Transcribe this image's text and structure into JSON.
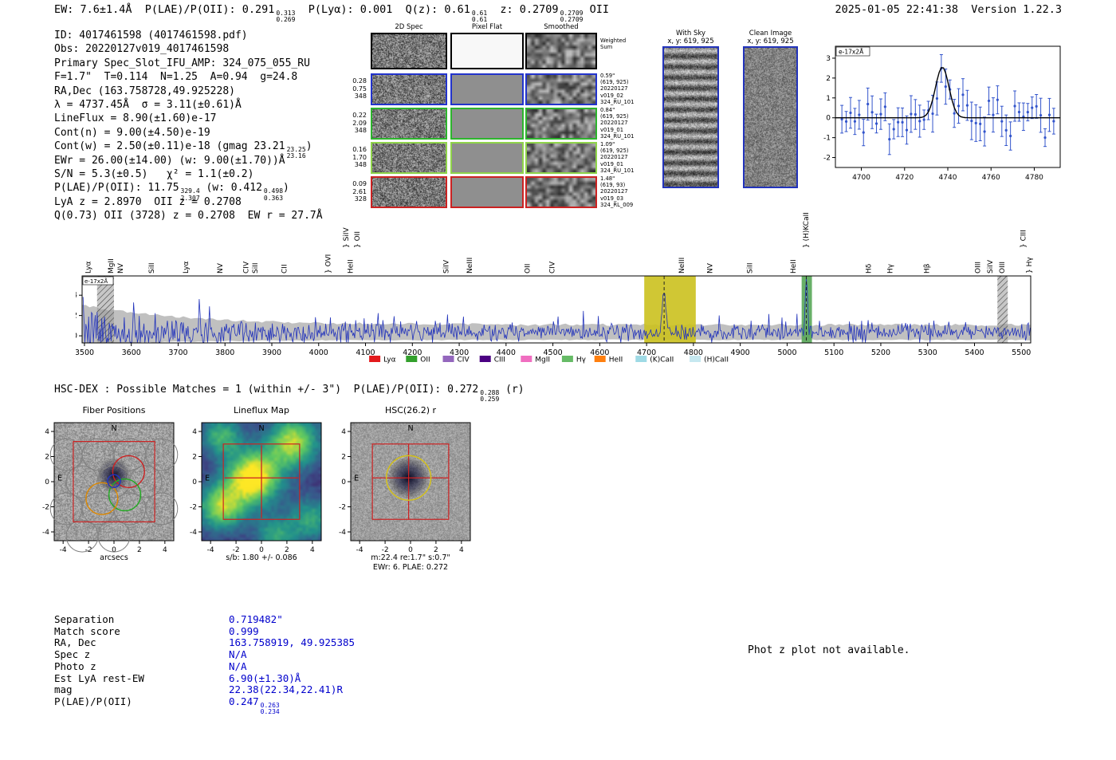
{
  "header": {
    "stats": [
      {
        "t": "EW: 7.6±1.4Å  P(LAE)/P(OII): 0.291"
      },
      {
        "f": [
          "0.313",
          "0.269"
        ]
      },
      {
        "t": "  P(Lyα): 0.001  Q(z): 0.61"
      },
      {
        "f": [
          "0.61",
          "0.61"
        ]
      },
      {
        "t": "  z: 0.2709"
      },
      {
        "f": [
          "0.2709",
          "0.2709"
        ]
      },
      {
        "t": " OII"
      }
    ],
    "datetime": "2025-01-05 22:41:38  Version 1.22.3"
  },
  "info": {
    "lines": [
      [
        {
          "t": "ID: 4017461598 (4017461598.pdf)"
        }
      ],
      [
        {
          "t": "Obs: 20220127v019_4017461598"
        }
      ],
      [
        {
          "t": "Primary Spec_Slot_IFU_AMP: 324_075_055_RU"
        }
      ],
      [
        {
          "t": "F=1.7\"  T=0.114  N=1.25  A=0.94  g=24.8"
        }
      ],
      [
        {
          "t": "RA,Dec (163.758728,49.925228)"
        }
      ],
      [
        {
          "t": "λ = 4737.45Å  σ = 3.11(±0.61)Å"
        }
      ],
      [
        {
          "t": "LineFlux = 8.90(±1.60)e-17"
        }
      ],
      [
        {
          "t": "Cont(n) = 9.00(±4.50)e-19"
        }
      ],
      [
        {
          "t": "Cont(w) = 2.50(±0.11)e-18 (gmag 23.21"
        },
        {
          "f": [
            "23.25",
            "23.16"
          ]
        },
        {
          "t": ")"
        }
      ],
      [
        {
          "t": "EWr = 26.00(±14.00) (w: 9.00(±1.70))Å"
        }
      ],
      [
        {
          "t": "S/N = 5.3(±0.5)   χ² = 1.1(±0.2)"
        }
      ],
      [
        {
          "t": "P(LAE)/P(OII): 11.75"
        },
        {
          "f": [
            "329.4",
            "2.307"
          ]
        },
        {
          "t": " (w: 0.412"
        },
        {
          "f": [
            "0.498",
            "0.363"
          ]
        },
        {
          "t": ")"
        }
      ],
      [
        {
          "t": "LyA z = 2.8970  OII z = 0.2708"
        }
      ],
      [
        {
          "t": "Q(0.73) OII (3728) z = 0.2708  EW r = 27.7Å"
        }
      ]
    ]
  },
  "cutouts": {
    "col_headers": [
      "2D Spec",
      "Pixel Flat",
      "Smoothed"
    ],
    "weighted": {
      "right_label": [
        "Weighted",
        "Sum"
      ]
    },
    "rows": [
      {
        "border": "#2233cc",
        "left": [
          "0.28",
          "0.75",
          "348"
        ],
        "right": [
          "0.59\"",
          "(619, 925)",
          "20220127",
          "v019_02",
          "324_RU_101"
        ]
      },
      {
        "border": "#2db52d",
        "left": [
          "0.22",
          "2.09",
          "348"
        ],
        "right": [
          "0.84\"",
          "(619, 925)",
          "20220127",
          "v019_01",
          "324_RU_101"
        ]
      },
      {
        "border": "#8fd44a",
        "left": [
          "0.16",
          "1.70",
          "348"
        ],
        "right": [
          "1.09\"",
          "(619, 925)",
          "20220127",
          "v019_01",
          "324_RU_101"
        ]
      },
      {
        "border": "#cc2222",
        "left": [
          "0.09",
          "2.61",
          "328"
        ],
        "right": [
          "1.48\"",
          "(619, 93)",
          "20220127",
          "v019_03",
          "324_RL_009"
        ]
      }
    ]
  },
  "sky": {
    "with_sky": {
      "title": "With Sky",
      "xy": "x, y: 619, 925"
    },
    "clean": {
      "title": "Clean Image",
      "xy": "x, y: 619, 925"
    }
  },
  "hsc_line": [
    {
      "t": "HSC-DEX : Possible Matches = 1 (within +/- 3\")  P(LAE)/P(OII): 0.272"
    },
    {
      "f": [
        "0.288",
        "0.259"
      ]
    },
    {
      "t": " (r)"
    }
  ],
  "match_table": {
    "rows": [
      {
        "label": "Separation",
        "value": [
          {
            "t": "0.719482\""
          }
        ]
      },
      {
        "label": "Match score",
        "value": [
          {
            "t": "0.999"
          }
        ]
      },
      {
        "label": "RA, Dec",
        "value": [
          {
            "t": "163.758919, 49.925385"
          }
        ]
      },
      {
        "label": "Spec z",
        "value": [
          {
            "t": "N/A"
          }
        ]
      },
      {
        "label": "Photo z",
        "value": [
          {
            "t": "N/A"
          }
        ]
      },
      {
        "label": "Est LyA rest-EW",
        "value": [
          {
            "t": "6.90(±1.30)Å"
          }
        ]
      },
      {
        "label": "mag",
        "value": [
          {
            "t": "22.38(22.34,22.41)R"
          }
        ]
      },
      {
        "label": "P(LAE)/P(OII)",
        "value": [
          {
            "t": "0.247"
          },
          {
            "f": [
              "0.263",
              "0.234"
            ]
          }
        ]
      }
    ]
  },
  "phot_note": "Phot z plot not available.",
  "chart_data": [
    {
      "id": "main_spectrum",
      "type": "line",
      "title": "",
      "xlabel": "",
      "ylabel": "e-17x2Å",
      "x_range": [
        3495,
        5520
      ],
      "y_range": [
        -0.7,
        5.9
      ],
      "x_ticks": [
        3500,
        3600,
        3700,
        3800,
        3900,
        4000,
        4100,
        4200,
        4300,
        4400,
        4500,
        4600,
        4700,
        4800,
        4900,
        5000,
        5100,
        5200,
        5300,
        5400,
        5500
      ],
      "y_ticks": [
        0,
        2,
        4
      ],
      "line_color": "#2233bb",
      "envelope_color": "#c0c0c0",
      "emission_peaks": [
        {
          "x": 4737.45,
          "amplitude": 4.3,
          "sigma": 3.5
        },
        {
          "x": 5041,
          "amplitude": 4.9,
          "sigma": 2.5
        }
      ],
      "highlight_bands": [
        {
          "x0": 4695,
          "x1": 4805,
          "color": "#cbc11e",
          "opacity": 0.9,
          "dashed_line": 4737.45
        },
        {
          "x0": 5031,
          "x1": 5053,
          "color": "#58a758",
          "opacity": 0.9,
          "dashed_line": 5041
        }
      ],
      "hatched_bands": [
        {
          "x0": 3527,
          "x1": 3563
        },
        {
          "x0": 5449,
          "x1": 5471
        }
      ],
      "line_labels": [
        {
          "text": "Lyα",
          "x": 3508,
          "color": "#ff55cc",
          "tier": 0
        },
        {
          "text": "MgII",
          "x": 3556,
          "color": "#2ca02c",
          "tier": 0
        },
        {
          "text": "NV",
          "x": 3577,
          "color": "#ff7f0e",
          "tier": 0
        },
        {
          "text": "SiII",
          "x": 3643,
          "color": "#ff7f0e",
          "tier": 0
        },
        {
          "text": "Lyα",
          "x": 3716,
          "color": "#ff55cc",
          "tier": 0
        },
        {
          "text": "NV",
          "x": 3789,
          "color": "#ff7f0e",
          "tier": 0
        },
        {
          "text": "CIV",
          "x": 3845,
          "color": "#9467bd",
          "tier": 0
        },
        {
          "text": "SiII",
          "x": 3864,
          "color": "#ff7f0e",
          "tier": 0
        },
        {
          "text": "CII",
          "x": 3926,
          "color": "#b87fd4",
          "tier": 0
        },
        {
          "text": "OVI",
          "x": 4020,
          "color": "#ff7f0e",
          "tier": 0,
          "brace": true
        },
        {
          "text": "HeII",
          "x": 4068,
          "color": "#a02c2c",
          "tier": 0
        },
        {
          "text": "SiIV",
          "x": 4058,
          "color": "#ff7f0e",
          "tier": 1,
          "brace": true
        },
        {
          "text": "OII",
          "x": 4082,
          "color": "#3366ee",
          "tier": 1,
          "brace": true
        },
        {
          "text": "SiIV",
          "x": 4272,
          "color": "#ff7f0e",
          "tier": 0
        },
        {
          "text": "NeIII",
          "x": 4322,
          "color": "#3366ee",
          "tier": 0
        },
        {
          "text": "OII",
          "x": 4445,
          "color": "#6cc5e0",
          "tier": 0
        },
        {
          "text": "CIV",
          "x": 4498,
          "color": "#6cc5e0",
          "tier": 0
        },
        {
          "text": "NeIII",
          "x": 4775,
          "color": "#ff9ec0",
          "tier": 0
        },
        {
          "text": "NV",
          "x": 4835,
          "color": "#dd2222",
          "tier": 0
        },
        {
          "text": "SiII",
          "x": 4920,
          "color": "#dd2222",
          "tier": 0
        },
        {
          "text": "HeII",
          "x": 5013,
          "color": "#ff55cc",
          "tier": 0
        },
        {
          "text": "(H)KCaII",
          "x": 5040,
          "color": "#2ca02c",
          "tier": 1,
          "brace": true
        },
        {
          "text": "Hδ",
          "x": 5174,
          "color": "#6cc5e0",
          "tier": 0
        },
        {
          "text": "Hγ",
          "x": 5220,
          "color": "#6cc5e0",
          "tier": 0
        },
        {
          "text": "Hβ",
          "x": 5298,
          "color": "#6cc5e0",
          "tier": 0
        },
        {
          "text": "OIII",
          "x": 5407,
          "color": "#6cc5e0",
          "tier": 0
        },
        {
          "text": "SiIV",
          "x": 5433,
          "color": "#dd2222",
          "tier": 0
        },
        {
          "text": "OIII",
          "x": 5459,
          "color": "#6cc5e0",
          "tier": 0
        },
        {
          "text": "CIII",
          "x": 5504,
          "color": "#ff9900",
          "tier": 1,
          "brace": true
        },
        {
          "text": "Hγ",
          "x": 5517,
          "color": "#66bb66",
          "tier": 0,
          "brace": true
        }
      ],
      "legend": [
        {
          "label": "Lyα",
          "color": "#e31a1c"
        },
        {
          "label": "OII",
          "color": "#33a02c"
        },
        {
          "label": "CIV",
          "color": "#9467bd"
        },
        {
          "label": "CIII",
          "color": "#4b0082"
        },
        {
          "label": "MgII",
          "color": "#f06ec0"
        },
        {
          "label": "Hγ",
          "color": "#66bb66"
        },
        {
          "label": "HeII",
          "color": "#ff7f0e"
        },
        {
          "label": "(K)CaII",
          "color": "#9edae5"
        },
        {
          "label": "(H)CaII",
          "color": "#c6e8f0"
        }
      ]
    },
    {
      "id": "zoom_spectrum",
      "type": "scatter",
      "ylabel": "e-17x2Å",
      "x_range": [
        4688,
        4792
      ],
      "y_range": [
        -2.5,
        3.6
      ],
      "x_ticks": [
        4700,
        4720,
        4740,
        4760,
        4780
      ],
      "y_ticks": [
        -2,
        -1,
        0,
        1,
        2,
        3
      ],
      "point_color": "#3355cc",
      "model_color": "#000000",
      "gaussian": {
        "center": 4737.45,
        "sigma": 3.11,
        "amplitude": 2.55
      },
      "noise_sigma": 0.55
    },
    {
      "id": "fiber_positions",
      "type": "heatmap",
      "title": "Fiber Positions",
      "xlabel": "arcsecs",
      "axis_ticks": [
        -4,
        -2,
        0,
        2,
        4
      ],
      "axis_range": [
        -4.7,
        4.7
      ],
      "compass": [
        "N",
        "E"
      ],
      "square_color": "#cc2222",
      "fiber_radius": 1.25,
      "fibers": [
        [
          -1.25,
          2.16
        ],
        [
          1.25,
          2.16
        ],
        [
          -3.75,
          2.16
        ],
        [
          3.75,
          2.16
        ],
        [
          -2.5,
          0
        ],
        [
          0,
          0
        ],
        [
          2.5,
          0
        ],
        [
          -1.25,
          -2.16
        ],
        [
          1.25,
          -2.16
        ],
        [
          -3.75,
          -2.16
        ],
        [
          3.75,
          -2.16
        ],
        [
          0,
          -4.33
        ],
        [
          -2.5,
          -4.33
        ]
      ],
      "highlight_fibers": [
        {
          "x": 1.15,
          "y": 0.8,
          "color": "#cc2222"
        },
        {
          "x": 0.85,
          "y": -1.05,
          "color": "#22aa22"
        },
        {
          "x": -0.95,
          "y": -1.35,
          "color": "#dd8800"
        }
      ],
      "center_marker": {
        "x": 0,
        "y": 0.05,
        "r": 0.5,
        "color": "#2233bb"
      }
    },
    {
      "id": "lineflux_map",
      "type": "heatmap",
      "title": "Lineflux Map",
      "xlabel": "s/b: 1.80 +/- 0.086",
      "axis_ticks": [
        -4,
        -2,
        0,
        2,
        4
      ],
      "axis_range": [
        -4.7,
        4.7
      ],
      "compass": [
        "N",
        "E"
      ],
      "colormap": "viridis",
      "crosshair_color": "#cc2222",
      "square_color": "#cc2222"
    },
    {
      "id": "hsc_cutout",
      "type": "heatmap",
      "title": "HSC(26.2) r",
      "xlabel": "m:22.4 re:1.7\" s:0.7\"",
      "xlabel2": "EWr: 6. PLAE: 0.272",
      "axis_ticks": [
        -4,
        -2,
        0,
        2,
        4
      ],
      "axis_range": [
        -4.7,
        4.7
      ],
      "compass": [
        "N",
        "E"
      ],
      "aperture": {
        "x": -0.15,
        "y": 0.3,
        "r": 1.75,
        "color": "#d4c11a"
      },
      "crosshair_color": "#cc2222",
      "square_color": "#cc2222"
    }
  ]
}
